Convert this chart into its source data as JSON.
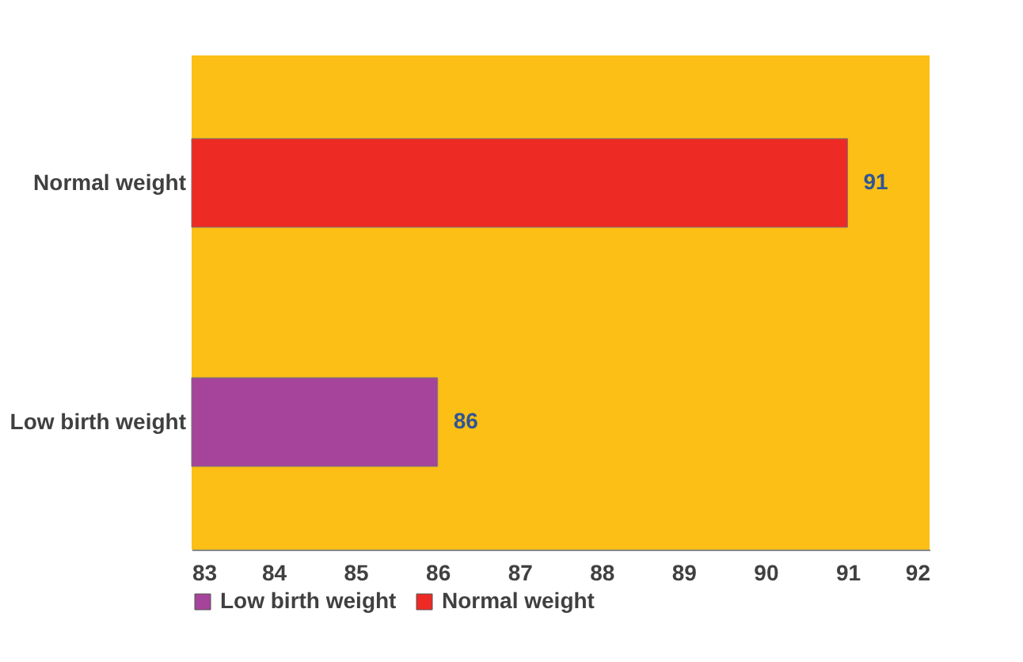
{
  "chart_data": {
    "type": "bar",
    "orientation": "horizontal",
    "categories": [
      "Normal weight",
      "Low birth weight"
    ],
    "series": [
      {
        "name": "Low birth weight",
        "color": "#a5449a",
        "values": [
          null,
          86
        ]
      },
      {
        "name": "Normal weight",
        "color": "#ee2a24",
        "values": [
          91,
          null
        ]
      }
    ],
    "xlim": [
      83,
      92
    ],
    "xticks": [
      83,
      84,
      85,
      86,
      87,
      88,
      89,
      90,
      91,
      92
    ],
    "data_labels": true,
    "grid": false,
    "legend": "bottom"
  }
}
